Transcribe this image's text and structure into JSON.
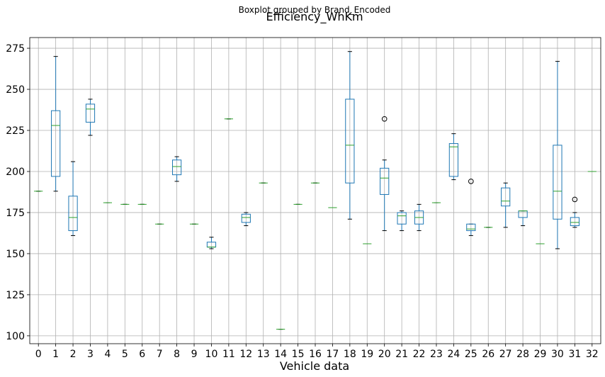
{
  "chart_data": {
    "type": "boxplot",
    "suptitle": "Boxplot grouped by Brand_Encoded",
    "title": "Efficiency_WhKm",
    "xlabel": "Vehicle data",
    "ylabel": "",
    "categories": [
      "0",
      "1",
      "2",
      "3",
      "4",
      "5",
      "6",
      "7",
      "8",
      "9",
      "10",
      "11",
      "12",
      "13",
      "14",
      "15",
      "16",
      "17",
      "18",
      "19",
      "20",
      "21",
      "22",
      "23",
      "24",
      "25",
      "26",
      "27",
      "28",
      "29",
      "30",
      "31",
      "32"
    ],
    "yticks": [
      100,
      125,
      150,
      175,
      200,
      225,
      250,
      275
    ],
    "ylim": [
      95.2,
      281.5
    ],
    "grid": true,
    "colors": {
      "box": "#1f77b4",
      "median": "#2ca02c",
      "whisker": "#1f77b4",
      "flier": "#000000",
      "grid": "#b0b0b0"
    },
    "boxes": [
      {
        "category": "0",
        "whislo": 188,
        "q1": 188,
        "med": 188,
        "q3": 188,
        "whishi": 188,
        "fliers": []
      },
      {
        "category": "1",
        "whislo": 188,
        "q1": 197,
        "med": 228,
        "q3": 237,
        "whishi": 270,
        "fliers": []
      },
      {
        "category": "2",
        "whislo": 161,
        "q1": 164,
        "med": 172,
        "q3": 185,
        "whishi": 206,
        "fliers": []
      },
      {
        "category": "3",
        "whislo": 222,
        "q1": 230,
        "med": 238,
        "q3": 241,
        "whishi": 244,
        "fliers": []
      },
      {
        "category": "4",
        "whislo": 181,
        "q1": 181,
        "med": 181,
        "q3": 181,
        "whishi": 181,
        "fliers": []
      },
      {
        "category": "5",
        "whislo": 180,
        "q1": 180,
        "med": 180,
        "q3": 180,
        "whishi": 180,
        "fliers": []
      },
      {
        "category": "6",
        "whislo": 180,
        "q1": 180,
        "med": 180,
        "q3": 180,
        "whishi": 180,
        "fliers": []
      },
      {
        "category": "7",
        "whislo": 168,
        "q1": 168,
        "med": 168,
        "q3": 168,
        "whishi": 168,
        "fliers": []
      },
      {
        "category": "8",
        "whislo": 194,
        "q1": 198,
        "med": 203,
        "q3": 207,
        "whishi": 209,
        "fliers": []
      },
      {
        "category": "9",
        "whislo": 168,
        "q1": 168,
        "med": 168,
        "q3": 168,
        "whishi": 168,
        "fliers": []
      },
      {
        "category": "10",
        "whislo": 153,
        "q1": 154,
        "med": 154,
        "q3": 157,
        "whishi": 160,
        "fliers": []
      },
      {
        "category": "11",
        "whislo": 232,
        "q1": 232,
        "med": 232,
        "q3": 232,
        "whishi": 232,
        "fliers": []
      },
      {
        "category": "12",
        "whislo": 167,
        "q1": 169,
        "med": 172,
        "q3": 174,
        "whishi": 175,
        "fliers": []
      },
      {
        "category": "13",
        "whislo": 193,
        "q1": 193,
        "med": 193,
        "q3": 193,
        "whishi": 193,
        "fliers": []
      },
      {
        "category": "14",
        "whislo": 104,
        "q1": 104,
        "med": 104,
        "q3": 104,
        "whishi": 104,
        "fliers": []
      },
      {
        "category": "15",
        "whislo": 180,
        "q1": 180,
        "med": 180,
        "q3": 180,
        "whishi": 180,
        "fliers": []
      },
      {
        "category": "16",
        "whislo": 193,
        "q1": 193,
        "med": 193,
        "q3": 193,
        "whishi": 193,
        "fliers": []
      },
      {
        "category": "17",
        "whislo": 178,
        "q1": 178,
        "med": 178,
        "q3": 178,
        "whishi": 178,
        "fliers": []
      },
      {
        "category": "18",
        "whislo": 171,
        "q1": 193,
        "med": 216,
        "q3": 244,
        "whishi": 273,
        "fliers": []
      },
      {
        "category": "19",
        "whislo": 156,
        "q1": 156,
        "med": 156,
        "q3": 156,
        "whishi": 156,
        "fliers": []
      },
      {
        "category": "20",
        "whislo": 164,
        "q1": 186,
        "med": 196,
        "q3": 202,
        "whishi": 207,
        "fliers": [
          232
        ]
      },
      {
        "category": "21",
        "whislo": 164,
        "q1": 168,
        "med": 173,
        "q3": 175,
        "whishi": 176,
        "fliers": []
      },
      {
        "category": "22",
        "whislo": 164,
        "q1": 168,
        "med": 172,
        "q3": 176,
        "whishi": 180,
        "fliers": []
      },
      {
        "category": "23",
        "whislo": 181,
        "q1": 181,
        "med": 181,
        "q3": 181,
        "whishi": 181,
        "fliers": []
      },
      {
        "category": "24",
        "whislo": 195,
        "q1": 197,
        "med": 215,
        "q3": 217,
        "whishi": 223,
        "fliers": []
      },
      {
        "category": "25",
        "whislo": 161,
        "q1": 164,
        "med": 165,
        "q3": 168,
        "whishi": 168,
        "fliers": [
          194
        ]
      },
      {
        "category": "26",
        "whislo": 166,
        "q1": 166,
        "med": 166,
        "q3": 166,
        "whishi": 166,
        "fliers": []
      },
      {
        "category": "27",
        "whislo": 166,
        "q1": 179,
        "med": 182,
        "q3": 190,
        "whishi": 193,
        "fliers": []
      },
      {
        "category": "28",
        "whislo": 167,
        "q1": 172,
        "med": 176,
        "q3": 176,
        "whishi": 176,
        "fliers": []
      },
      {
        "category": "29",
        "whislo": 156,
        "q1": 156,
        "med": 156,
        "q3": 156,
        "whishi": 156,
        "fliers": []
      },
      {
        "category": "30",
        "whislo": 153,
        "q1": 171,
        "med": 188,
        "q3": 216,
        "whishi": 267,
        "fliers": []
      },
      {
        "category": "31",
        "whislo": 166,
        "q1": 167,
        "med": 169,
        "q3": 172,
        "whishi": 175,
        "fliers": [
          183
        ]
      },
      {
        "category": "32",
        "whislo": 200,
        "q1": 200,
        "med": 200,
        "q3": 200,
        "whishi": 200,
        "fliers": []
      }
    ]
  }
}
